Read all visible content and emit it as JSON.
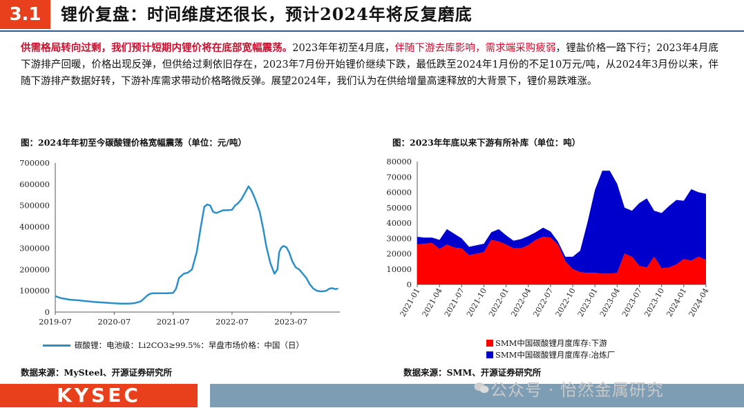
{
  "header": {
    "section_num": "3.1",
    "title": "锂价复盘：时间维度还很长，预计2024年将反复磨底"
  },
  "paragraph": {
    "seg1": "供需格局转向过剩，我们预计短期内锂价将在底部宽幅震荡。",
    "seg2": "2023年年初至4月底，",
    "seg3": "伴随下游去库影响，需求端采购疲弱",
    "seg4": "，锂盐价格一路下行；2023年4月底下游排产回暖，价格出现反弹，但供给过剩依旧存在，2023年7月份开始锂价继续下跌，最低跌至2024年1月份的不足10万元/吨，从2024年3月份以来，伴随下游排产数据好转，下游补库需求带动价格略微反弹。展望2024年，我们认为在供给增量高速释放的大背景下，锂价易跌难涨。"
  },
  "left_chart": {
    "caption": "图：2024年年初至今碳酸锂价格宽幅震荡（单位：元/吨）",
    "legend": "碳酸锂：电池级：Li2CO3≥99.5%：早盘市场价格：中国（日）",
    "source": "数据来源：MySteel、开源证券研究所"
  },
  "right_chart": {
    "caption": "图：2023年年底以来下游有所补库（单位：吨）",
    "legend_downstream": "SMM中国碳酸锂月度库存:下游",
    "legend_smelter": "SMM中国碳酸锂月度库存:冶炼厂",
    "source": "数据来源：SMM、开源证券研究所"
  },
  "footer": {
    "logo": "KYSEC",
    "watermark": "公众号 · 怡然金属研究"
  },
  "colors": {
    "accent": "#e8401c",
    "line": "#2a8fc9",
    "red": "#ff0000",
    "blue": "#0000cc"
  },
  "chart_data": [
    {
      "type": "line",
      "title": "2024年年初至今碳酸锂价格宽幅震荡（单位：元/吨）",
      "ylim": [
        0,
        700000
      ],
      "yticks": [
        0,
        100000,
        200000,
        300000,
        400000,
        500000,
        600000,
        700000
      ],
      "xlim": [
        2019.5,
        2024.33
      ],
      "xticks": [
        2019.5,
        2020.5,
        2021.5,
        2022.5,
        2023.5
      ],
      "xtick_labels": [
        "2019-07",
        "2020-07",
        "2021-07",
        "2022-07",
        "2023-07"
      ],
      "series": [
        {
          "name": "碳酸锂：电池级：Li2CO3≥99.5%：早盘市场价格：中国（日）",
          "x": [
            2019.5,
            2019.6,
            2019.75,
            2019.9,
            2020.0,
            2020.15,
            2020.3,
            2020.45,
            2020.6,
            2020.75,
            2020.85,
            2020.95,
            2021.0,
            2021.05,
            2021.1,
            2021.15,
            2021.25,
            2021.4,
            2021.5,
            2021.55,
            2021.6,
            2021.68,
            2021.75,
            2021.82,
            2021.9,
            2021.97,
            2022.03,
            2022.08,
            2022.13,
            2022.18,
            2022.23,
            2022.28,
            2022.35,
            2022.42,
            2022.5,
            2022.55,
            2022.6,
            2022.66,
            2022.72,
            2022.78,
            2022.83,
            2022.87,
            2022.92,
            2022.97,
            2023.03,
            2023.08,
            2023.15,
            2023.22,
            2023.27,
            2023.3,
            2023.33,
            2023.37,
            2023.42,
            2023.47,
            2023.52,
            2023.58,
            2023.64,
            2023.7,
            2023.76,
            2023.82,
            2023.88,
            2023.94,
            2024.0,
            2024.05,
            2024.1,
            2024.15,
            2024.2,
            2024.25,
            2024.3
          ],
          "values": [
            75000,
            65000,
            58000,
            55000,
            52000,
            48000,
            45000,
            42000,
            40000,
            40000,
            42000,
            50000,
            62000,
            75000,
            85000,
            88000,
            88000,
            88000,
            90000,
            110000,
            160000,
            180000,
            185000,
            200000,
            280000,
            400000,
            495000,
            505000,
            500000,
            470000,
            465000,
            470000,
            478000,
            478000,
            480000,
            500000,
            510000,
            530000,
            560000,
            590000,
            570000,
            545000,
            510000,
            470000,
            390000,
            310000,
            230000,
            180000,
            200000,
            280000,
            300000,
            310000,
            305000,
            280000,
            240000,
            210000,
            200000,
            180000,
            160000,
            130000,
            110000,
            100000,
            97000,
            98000,
            100000,
            110000,
            112000,
            108000,
            110000
          ]
        }
      ]
    },
    {
      "type": "area",
      "stacked": true,
      "title": "2023年年底以来下游有所补库（单位：吨）",
      "ylim": [
        0,
        80000
      ],
      "yticks": [
        0,
        10000,
        20000,
        30000,
        40000,
        50000,
        60000,
        70000,
        80000
      ],
      "categories": [
        "2021-01",
        "2021-02",
        "2021-03",
        "2021-04",
        "2021-05",
        "2021-06",
        "2021-07",
        "2021-08",
        "2021-09",
        "2021-10",
        "2021-11",
        "2021-12",
        "2022-01",
        "2022-02",
        "2022-03",
        "2022-04",
        "2022-05",
        "2022-06",
        "2022-07",
        "2022-08",
        "2022-09",
        "2022-10",
        "2022-11",
        "2022-12",
        "2023-01",
        "2023-02",
        "2023-03",
        "2023-04",
        "2023-05",
        "2023-06",
        "2023-07",
        "2023-08",
        "2023-09",
        "2023-10",
        "2023-11",
        "2023-12",
        "2024-01",
        "2024-02",
        "2024-03",
        "2024-04"
      ],
      "tick_labels": [
        "2021-01",
        "2021-04",
        "2021-07",
        "2021-10",
        "2022-01",
        "2022-04",
        "2022-07",
        "2022-10",
        "2023-01",
        "2023-04",
        "2023-07",
        "2023-10",
        "2024-01",
        "2024-04"
      ],
      "series": [
        {
          "name": "SMM中国碳酸锂月度库存:下游",
          "values": [
            26000,
            26500,
            27000,
            23000,
            26000,
            24000,
            23500,
            19000,
            20000,
            21000,
            29000,
            28000,
            26000,
            23500,
            23500,
            25500,
            29000,
            31000,
            30500,
            26000,
            15000,
            10000,
            8000,
            7500,
            7500,
            7000,
            7000,
            7500,
            20000,
            18000,
            12000,
            11000,
            18000,
            10500,
            11000,
            13000,
            16500,
            15500,
            18000,
            16000
          ]
        },
        {
          "name": "SMM中国碳酸锂月度库存:冶炼厂",
          "values": [
            5000,
            4000,
            3500,
            6000,
            10000,
            9000,
            6500,
            5500,
            5500,
            5500,
            5000,
            8000,
            6000,
            5000,
            6000,
            6000,
            5000,
            6000,
            4000,
            2000,
            3000,
            8000,
            14000,
            33000,
            54000,
            67000,
            67000,
            58000,
            30000,
            30000,
            41000,
            45000,
            30000,
            36000,
            40000,
            42000,
            38000,
            46500,
            42000,
            43000
          ]
        }
      ]
    }
  ]
}
